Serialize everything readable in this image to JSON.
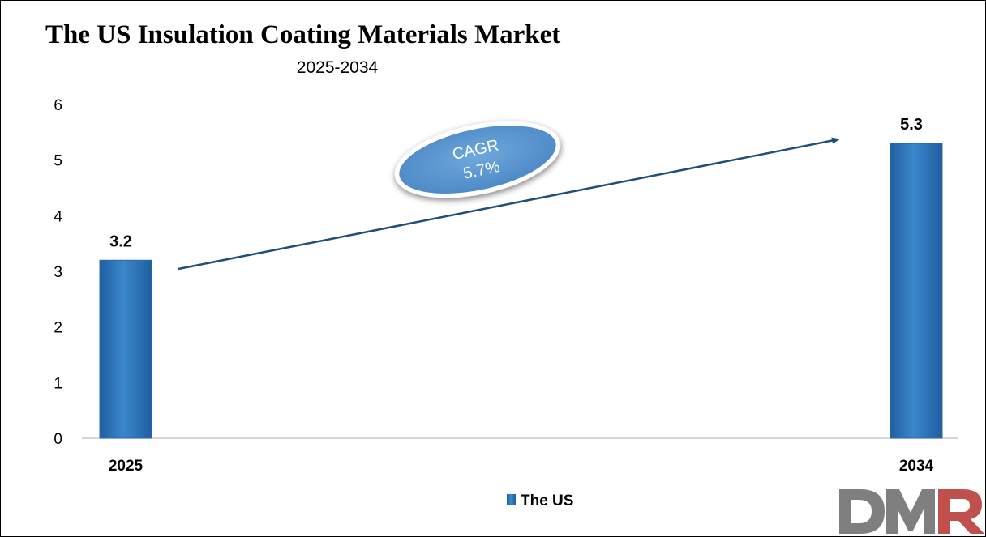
{
  "chart_data": {
    "type": "bar",
    "title": "The US Insulation Coating Materials Market",
    "subtitle": "2025-2034",
    "categories": [
      "2025",
      "2034"
    ],
    "series": [
      {
        "name": "The US",
        "values": [
          3.2,
          5.3
        ]
      }
    ],
    "data_labels": [
      "3.2",
      "5.3"
    ],
    "y_ticks": [
      "0",
      "1",
      "2",
      "3",
      "4",
      "5",
      "6"
    ],
    "ylim": [
      0,
      6
    ],
    "grid": false,
    "legend_position": "bottom",
    "annotation": {
      "line1": "CAGR",
      "line2": "5.7%"
    },
    "colors": {
      "bar": "#2E75B6",
      "bar_light": "#5B9BD5",
      "arrow": "#1F4E79"
    }
  },
  "logo": {
    "text": "DMR",
    "colors": {
      "d_m": "#7F7F7F",
      "r": "#C0504D"
    }
  }
}
